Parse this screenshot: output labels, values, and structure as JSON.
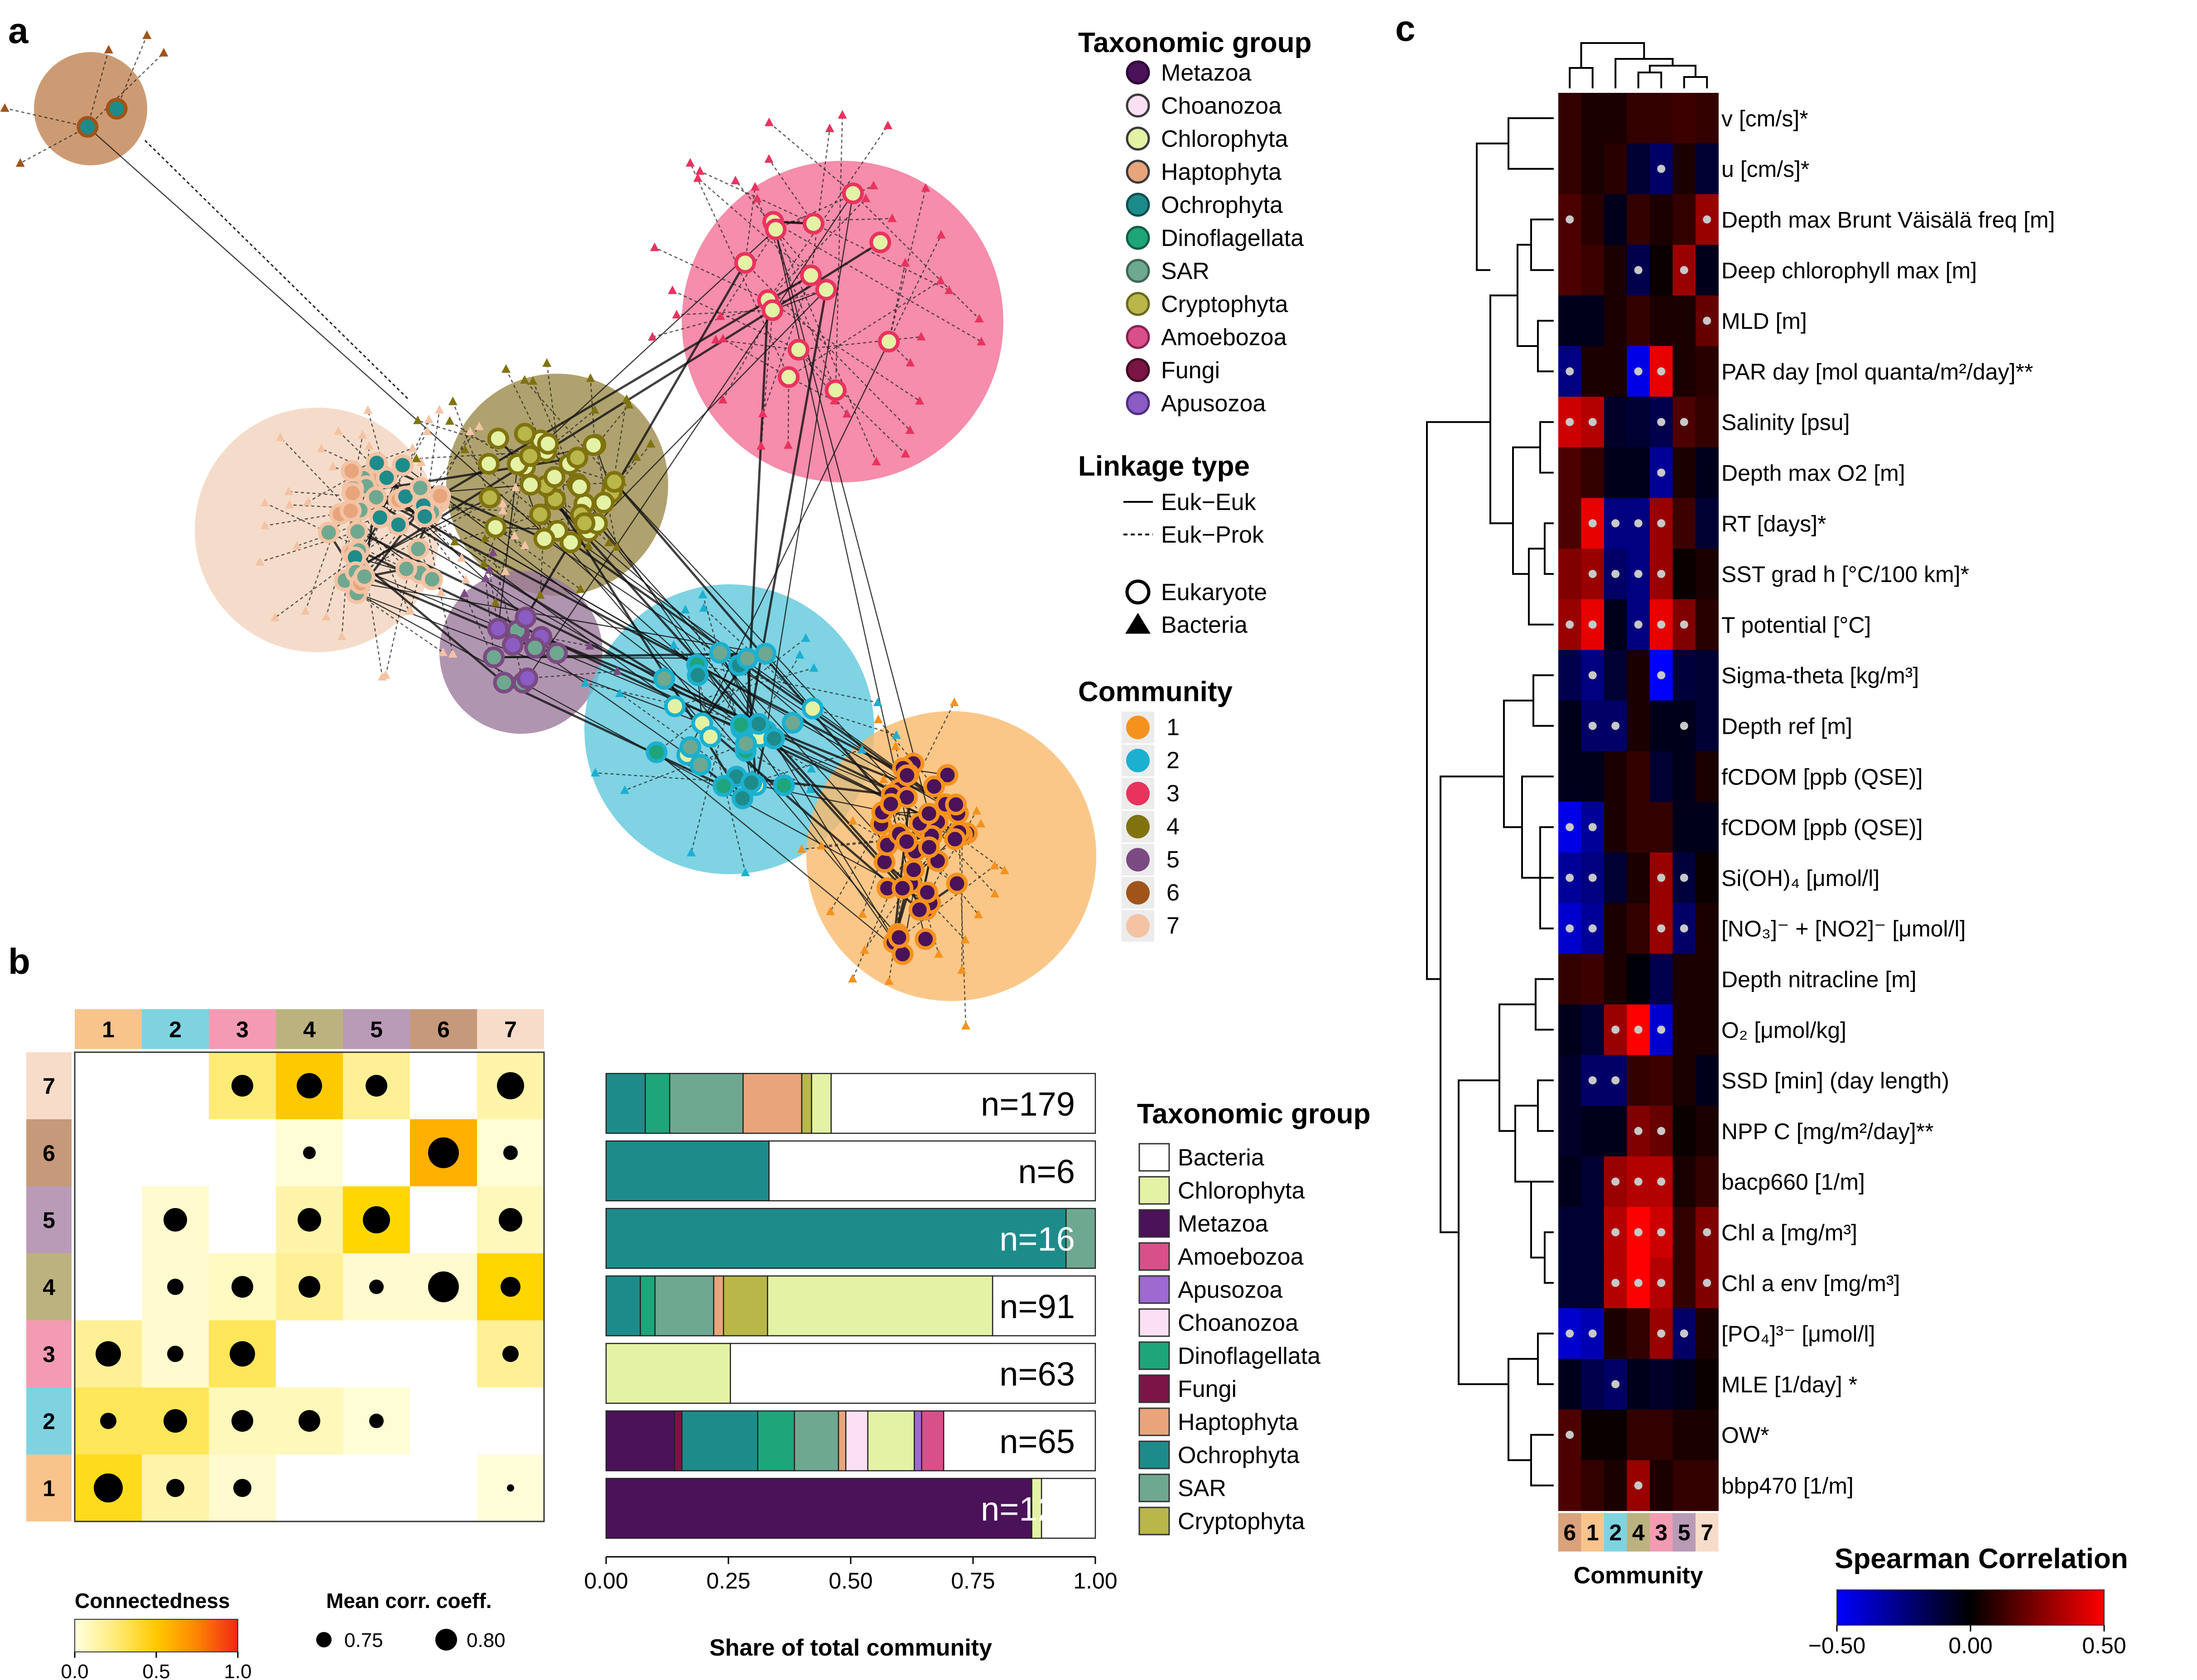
{
  "panel_labels": {
    "a": "a",
    "b": "b",
    "c": "c"
  },
  "legend_a": {
    "taxon_title": "Taxonomic group",
    "taxa": [
      {
        "label": "Metazoa",
        "fill": "#4a1259",
        "stroke": "#2a0733"
      },
      {
        "label": "Choanozoa",
        "fill": "#fbe0f5",
        "stroke": "#3a3a3a"
      },
      {
        "label": "Chlorophyta",
        "fill": "#e3f2a5",
        "stroke": "#3a3a3a"
      },
      {
        "label": "Haptophyta",
        "fill": "#e8a57c",
        "stroke": "#3a3a3a"
      },
      {
        "label": "Ochrophyta",
        "fill": "#1e8b8b",
        "stroke": "#0f4f4f"
      },
      {
        "label": "Dinoflagellata",
        "fill": "#1ea57a",
        "stroke": "#0f5f45"
      },
      {
        "label": "SAR",
        "fill": "#6fa890",
        "stroke": "#3d6655"
      },
      {
        "label": "Cryptophyta",
        "fill": "#b9b64a",
        "stroke": "#6a6820"
      },
      {
        "label": "Amoebozoa",
        "fill": "#d94f8a",
        "stroke": "#8a2050"
      },
      {
        "label": "Fungi",
        "fill": "#7a1545",
        "stroke": "#440a25"
      },
      {
        "label": "Apusozoa",
        "fill": "#8a5cc4",
        "stroke": "#4f2f80"
      }
    ],
    "linkage_title": "Linkage type",
    "linkage": [
      "Euk−Euk",
      "Euk−Prok"
    ],
    "shapes": [
      "Eukaryote",
      "Bacteria"
    ],
    "community_title": "Community",
    "communities": [
      {
        "label": "1",
        "color": "#f5921e"
      },
      {
        "label": "2",
        "color": "#1bb0d0"
      },
      {
        "label": "3",
        "color": "#e8335f"
      },
      {
        "label": "4",
        "color": "#80730f"
      },
      {
        "label": "5",
        "color": "#7b4a82"
      },
      {
        "label": "6",
        "color": "#a0541a"
      },
      {
        "label": "7",
        "color": "#f3c3a4"
      }
    ]
  },
  "network": {
    "communities": [
      {
        "id": "1",
        "fill": "#f9b96c"
      },
      {
        "id": "2",
        "fill": "#5fc8dc"
      },
      {
        "id": "3",
        "fill": "#f27096"
      },
      {
        "id": "4",
        "fill": "#9b8b4a"
      },
      {
        "id": "5",
        "fill": "#9c7a9e"
      },
      {
        "id": "6",
        "fill": "#c08250"
      },
      {
        "id": "7",
        "fill": "#f3d3bd"
      }
    ]
  },
  "chart_data": [
    {
      "type": "heatmap",
      "panel": "b",
      "row_labels": [
        "7",
        "6",
        "5",
        "4",
        "3",
        "2",
        "1"
      ],
      "col_labels": [
        "1",
        "2",
        "3",
        "4",
        "5",
        "6",
        "7"
      ],
      "connectedness": [
        [
          null,
          null,
          0.25,
          0.5,
          0.2,
          null,
          0.15
        ],
        [
          null,
          null,
          null,
          0.03,
          null,
          0.6,
          0.03
        ],
        [
          null,
          0.05,
          null,
          0.15,
          0.45,
          null,
          0.1
        ],
        [
          null,
          0.05,
          0.08,
          0.2,
          0.05,
          0.05,
          0.45
        ],
        [
          0.2,
          0.05,
          0.3,
          null,
          null,
          null,
          0.2
        ],
        [
          0.3,
          0.3,
          0.1,
          0.1,
          0.03,
          null,
          null
        ],
        [
          0.4,
          0.15,
          0.05,
          null,
          null,
          null,
          0.02
        ]
      ],
      "mean_corr": [
        [
          null,
          null,
          0.76,
          0.78,
          0.76,
          null,
          0.79
        ],
        [
          null,
          null,
          null,
          0.71,
          null,
          0.81,
          0.72
        ],
        [
          null,
          0.77,
          null,
          0.77,
          0.79,
          null,
          0.77
        ],
        [
          null,
          0.73,
          0.76,
          0.76,
          0.72,
          0.81,
          0.75
        ],
        [
          0.78,
          0.73,
          0.78,
          null,
          null,
          null,
          0.73
        ],
        [
          0.73,
          0.77,
          0.76,
          0.76,
          0.72,
          null,
          null
        ],
        [
          0.8,
          0.74,
          0.74,
          null,
          null,
          null,
          0.68
        ]
      ],
      "row_colors": [
        "#f7dcc9",
        "#c6997a",
        "#b99bb8",
        "#bcb27f",
        "#f49bb4",
        "#7fd3e0",
        "#f8c48c"
      ],
      "col_colors": [
        "#f8c48c",
        "#7fd3e0",
        "#f49bb4",
        "#bcb27f",
        "#b99bb8",
        "#c6997a",
        "#f7dcc9"
      ],
      "legend_connectedness": {
        "title": "Connectedness",
        "ticks": [
          "0.0",
          "0.5",
          "1.0"
        ]
      },
      "legend_corr": {
        "title": "Mean corr. coeff.",
        "ticks": [
          "0.75",
          "0.80"
        ]
      }
    },
    {
      "type": "bar",
      "panel": "b",
      "orientation": "horizontal-stacked",
      "xlabel": "Share of total community",
      "xticks": [
        "0.00",
        "0.25",
        "0.50",
        "0.75",
        "1.00"
      ],
      "xlim": [
        0,
        1
      ],
      "legend_title": "Taxonomic group",
      "legend": [
        {
          "label": "Bacteria",
          "color": "#ffffff"
        },
        {
          "label": "Chlorophyta",
          "color": "#e3f2a5"
        },
        {
          "label": "Metazoa",
          "color": "#4a1259"
        },
        {
          "label": "Amoebozoa",
          "color": "#d94f8a"
        },
        {
          "label": "Apusozoa",
          "color": "#9c6ad0"
        },
        {
          "label": "Choanozoa",
          "color": "#fbe0f5"
        },
        {
          "label": "Dinoflagellata",
          "color": "#1ea57a"
        },
        {
          "label": "Fungi",
          "color": "#7a1545"
        },
        {
          "label": "Haptophyta",
          "color": "#e8a57c"
        },
        {
          "label": "Ochrophyta",
          "color": "#1e8b8b"
        },
        {
          "label": "SAR",
          "color": "#6fa890"
        },
        {
          "label": "Cryptophyta",
          "color": "#b9b64a"
        }
      ],
      "bars": [
        {
          "n": "n=179",
          "dark_label": false,
          "segments": [
            [
              "Ochrophyta",
              0.08
            ],
            [
              "Dinoflagellata",
              0.05
            ],
            [
              "SAR",
              0.15
            ],
            [
              "Haptophyta",
              0.12
            ],
            [
              "Cryptophyta",
              0.02
            ],
            [
              "Chlorophyta",
              0.04
            ],
            [
              "Bacteria",
              0.54
            ]
          ]
        },
        {
          "n": "n=6",
          "dark_label": false,
          "segments": [
            [
              "Ochrophyta",
              0.333
            ],
            [
              "Bacteria",
              0.667
            ]
          ]
        },
        {
          "n": "n=16",
          "dark_label": true,
          "segments": [
            [
              "Ochrophyta",
              0.94
            ],
            [
              "SAR",
              0.06
            ]
          ]
        },
        {
          "n": "n=91",
          "dark_label": false,
          "segments": [
            [
              "Ochrophyta",
              0.07
            ],
            [
              "Dinoflagellata",
              0.03
            ],
            [
              "SAR",
              0.12
            ],
            [
              "Haptophyta",
              0.02
            ],
            [
              "Cryptophyta",
              0.09
            ],
            [
              "Chlorophyta",
              0.46
            ],
            [
              "Bacteria",
              0.21
            ]
          ]
        },
        {
          "n": "n=63",
          "dark_label": false,
          "segments": [
            [
              "Chlorophyta",
              0.254
            ],
            [
              "Bacteria",
              0.746
            ]
          ]
        },
        {
          "n": "n=65",
          "dark_label": false,
          "segments": [
            [
              "Metazoa",
              0.14
            ],
            [
              "Fungi",
              0.015
            ],
            [
              "Ochrophyta",
              0.155
            ],
            [
              "Dinoflagellata",
              0.075
            ],
            [
              "SAR",
              0.09
            ],
            [
              "Haptophyta",
              0.015
            ],
            [
              "Choanozoa",
              0.045
            ],
            [
              "Chlorophyta",
              0.095
            ],
            [
              "Apusozoa",
              0.015
            ],
            [
              "Amoebozoa",
              0.045
            ],
            [
              "Bacteria",
              0.31
            ]
          ]
        },
        {
          "n": "n=121",
          "dark_label": true,
          "segments": [
            [
              "Metazoa",
              0.87
            ],
            [
              "Chlorophyta",
              0.02
            ],
            [
              "Bacteria",
              0.11
            ]
          ]
        }
      ]
    },
    {
      "type": "heatmap",
      "panel": "c",
      "xlabel": "Community",
      "col_labels": [
        "6",
        "1",
        "2",
        "4",
        "3",
        "5",
        "7"
      ],
      "col_colors": [
        "#d9a27a",
        "#f8c48c",
        "#7fd3e0",
        "#bcb27f",
        "#f49bb4",
        "#b99bb8",
        "#f7dcc9"
      ],
      "row_labels": [
        "v [cm/s]*",
        "u [cm/s]*",
        "Depth max Brunt Väisälä freq [m]",
        "Deep chlorophyll max [m]",
        "MLD [m]",
        "PAR day [mol quanta/m²/day]**",
        "Salinity [psu]",
        "Depth max O2 [m]",
        "RT [days]*",
        "SST grad h [°C/100 km]*",
        "T potential [°C]",
        "Sigma-theta [kg/m³]",
        "Depth ref [m]",
        "fCDOM [ppb (QSE)]",
        "fCDOM [ppb (QSE)]",
        "Si(OH)₄ [μmol/l]",
        "[NO₃]⁻ + [NO2]⁻ [μmol/l]",
        "Depth nitracline [m]",
        "O₂ [μmol/kg]",
        "SSD [min] (day length)",
        "NPP C [mg/m²/day]**",
        "bacp660 [1/m]",
        "Chl a [mg/m³]",
        "Chl a env [mg/m³]",
        "[PO₄]³⁻ [μmol/l]",
        "MLE [1/day] *",
        "OW*",
        "bbp470 [1/m]"
      ],
      "values": [
        [
          0.1,
          0.05,
          0.05,
          0.1,
          0.1,
          0.12,
          0.1
        ],
        [
          0.1,
          0.05,
          0.08,
          -0.1,
          -0.2,
          0.05,
          -0.1
        ],
        [
          0.15,
          0.08,
          -0.05,
          0.1,
          0.05,
          0.1,
          0.3
        ],
        [
          0.15,
          0.12,
          0.05,
          -0.15,
          0.02,
          0.3,
          -0.05
        ],
        [
          -0.05,
          -0.05,
          0.05,
          0.1,
          0.05,
          0.05,
          0.2
        ],
        [
          -0.25,
          0.05,
          0.05,
          -0.45,
          0.45,
          0.05,
          0.08
        ],
        [
          0.4,
          0.35,
          -0.08,
          -0.1,
          -0.15,
          0.15,
          0.1
        ],
        [
          0.15,
          0.1,
          -0.05,
          -0.05,
          -0.3,
          0.05,
          -0.05
        ],
        [
          0.15,
          0.45,
          -0.25,
          -0.25,
          0.3,
          0.12,
          -0.1
        ],
        [
          0.25,
          0.3,
          -0.2,
          -0.25,
          0.3,
          0.02,
          0.05
        ],
        [
          0.3,
          0.45,
          -0.05,
          -0.25,
          0.45,
          0.25,
          0.08
        ],
        [
          -0.15,
          -0.25,
          -0.1,
          0.05,
          -0.6,
          -0.12,
          -0.1
        ],
        [
          -0.05,
          -0.2,
          -0.2,
          0.05,
          -0.05,
          -0.05,
          -0.1
        ],
        [
          -0.05,
          -0.05,
          0.05,
          0.1,
          -0.1,
          -0.05,
          0.05
        ],
        [
          -0.45,
          -0.3,
          0.05,
          0.1,
          0.1,
          -0.05,
          -0.05
        ],
        [
          -0.3,
          -0.25,
          -0.1,
          0.05,
          0.3,
          -0.12,
          0.02
        ],
        [
          -0.4,
          -0.3,
          0.05,
          0.1,
          0.3,
          -0.2,
          0.05
        ],
        [
          0.1,
          0.12,
          0.05,
          -0.02,
          -0.15,
          0.05,
          0.05
        ],
        [
          -0.05,
          -0.1,
          0.3,
          0.5,
          -0.4,
          0.05,
          0.05
        ],
        [
          -0.08,
          -0.2,
          -0.2,
          0.1,
          0.12,
          0.05,
          -0.05
        ],
        [
          -0.08,
          -0.05,
          -0.05,
          0.25,
          0.2,
          0.02,
          0.05
        ],
        [
          -0.05,
          -0.1,
          0.3,
          0.35,
          0.35,
          0.05,
          0.1
        ],
        [
          -0.1,
          -0.1,
          0.35,
          0.5,
          0.4,
          0.1,
          0.25
        ],
        [
          -0.1,
          -0.1,
          0.35,
          0.5,
          0.35,
          0.1,
          0.25
        ],
        [
          -0.4,
          -0.35,
          0.05,
          0.1,
          0.3,
          -0.2,
          0.05
        ],
        [
          -0.05,
          -0.15,
          -0.2,
          -0.05,
          -0.08,
          -0.05,
          0.02
        ],
        [
          0.15,
          0.02,
          0.02,
          0.1,
          0.1,
          0.05,
          0.05
        ],
        [
          0.15,
          0.1,
          0.05,
          0.3,
          0.05,
          0.1,
          0.1
        ]
      ],
      "significant": [
        [
          0,
          0,
          0,
          0,
          0,
          0,
          0
        ],
        [
          0,
          0,
          0,
          0,
          1,
          0,
          0
        ],
        [
          1,
          0,
          0,
          0,
          0,
          0,
          1
        ],
        [
          0,
          0,
          0,
          1,
          0,
          1,
          0
        ],
        [
          0,
          0,
          0,
          0,
          0,
          0,
          1
        ],
        [
          1,
          0,
          0,
          1,
          1,
          0,
          0
        ],
        [
          1,
          1,
          0,
          0,
          1,
          1,
          0
        ],
        [
          0,
          0,
          0,
          0,
          1,
          0,
          0
        ],
        [
          0,
          1,
          1,
          1,
          1,
          0,
          0
        ],
        [
          0,
          1,
          1,
          1,
          1,
          0,
          0
        ],
        [
          1,
          1,
          0,
          1,
          1,
          1,
          0
        ],
        [
          0,
          1,
          0,
          0,
          1,
          0,
          0
        ],
        [
          0,
          1,
          1,
          0,
          0,
          1,
          0
        ],
        [
          0,
          0,
          0,
          0,
          0,
          0,
          0
        ],
        [
          1,
          1,
          0,
          0,
          0,
          0,
          0
        ],
        [
          1,
          1,
          0,
          0,
          1,
          1,
          0
        ],
        [
          1,
          1,
          0,
          0,
          1,
          1,
          0
        ],
        [
          0,
          0,
          0,
          0,
          0,
          0,
          0
        ],
        [
          0,
          0,
          1,
          1,
          1,
          0,
          0
        ],
        [
          0,
          1,
          1,
          0,
          0,
          0,
          0
        ],
        [
          0,
          0,
          0,
          1,
          1,
          0,
          0
        ],
        [
          0,
          0,
          1,
          1,
          1,
          0,
          0
        ],
        [
          0,
          0,
          1,
          1,
          1,
          0,
          1
        ],
        [
          0,
          0,
          1,
          1,
          1,
          0,
          1
        ],
        [
          1,
          1,
          0,
          0,
          1,
          1,
          0
        ],
        [
          0,
          0,
          1,
          0,
          0,
          0,
          0
        ],
        [
          1,
          0,
          0,
          0,
          0,
          0,
          0
        ],
        [
          0,
          0,
          0,
          1,
          0,
          0,
          0
        ]
      ],
      "colorbar": {
        "title": "Spearman Correlation",
        "ticks": [
          "−0.50",
          "0.00",
          "0.50"
        ],
        "range": [
          -0.5,
          0.5
        ]
      }
    }
  ]
}
